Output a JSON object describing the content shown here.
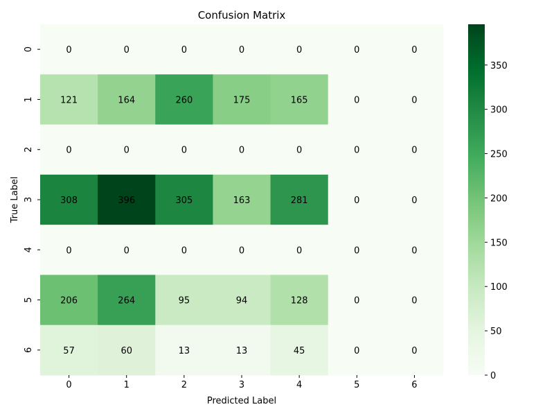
{
  "chart_data": {
    "type": "heatmap",
    "title": "Confusion Matrix",
    "xlabel": "Predicted Label",
    "ylabel": "True Label",
    "x_categories": [
      "0",
      "1",
      "2",
      "3",
      "4",
      "5",
      "6"
    ],
    "y_categories": [
      "0",
      "1",
      "2",
      "3",
      "4",
      "5",
      "6"
    ],
    "values": [
      [
        0,
        0,
        0,
        0,
        0,
        0,
        0
      ],
      [
        121,
        164,
        260,
        175,
        165,
        0,
        0
      ],
      [
        0,
        0,
        0,
        0,
        0,
        0,
        0
      ],
      [
        308,
        396,
        305,
        163,
        281,
        0,
        0
      ],
      [
        0,
        0,
        0,
        0,
        0,
        0,
        0
      ],
      [
        206,
        264,
        95,
        94,
        128,
        0,
        0
      ],
      [
        57,
        60,
        13,
        13,
        45,
        0,
        0
      ]
    ],
    "colormap": "Greens",
    "color_range": [
      0,
      396
    ],
    "colorbar_ticks": [
      0,
      50,
      100,
      150,
      200,
      250,
      300,
      350
    ],
    "grid": false,
    "legend": "colorbar-right"
  }
}
